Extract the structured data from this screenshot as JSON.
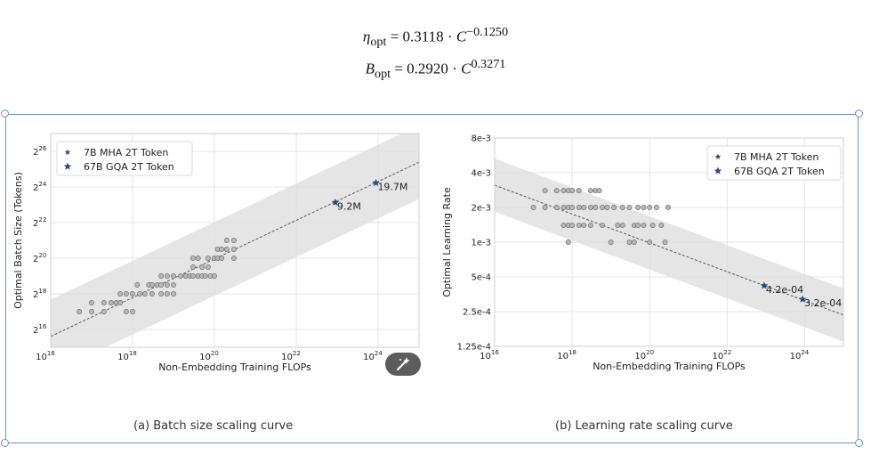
{
  "formulas": {
    "eta": {
      "symbol": "η",
      "sub": "opt",
      "rhs": "= 0.3118 · ",
      "base": "C",
      "exp": "−0.1250"
    },
    "batch": {
      "symbol": "B",
      "sub": "opt",
      "rhs": "= 0.2920 · ",
      "base": "C",
      "exp": "0.3271"
    }
  },
  "captions": {
    "left": "(a)  Batch size scaling curve",
    "right": "(b)  Learning rate scaling curve"
  },
  "colors": {
    "star": "#2b4a8a",
    "point": "#b8b8b8",
    "band": "#dcdcdc",
    "fit": "#555555"
  },
  "icons": {
    "magic_button": "magic-wand-icon"
  },
  "chart_data": [
    {
      "type": "scatter",
      "xlabel": "Non-Embedding Training FLOPs",
      "ylabel": "Optimal Batch Size (Tokens)",
      "x_scale": "log10",
      "y_scale": "log2",
      "xlim": [
        1e+16,
        1e+25
      ],
      "ylim": [
        32768,
        134217728
      ],
      "x_ticks": [
        {
          "v": 16,
          "base": "10",
          "exp": "16"
        },
        {
          "v": 18,
          "base": "10",
          "exp": "18"
        },
        {
          "v": 20,
          "base": "10",
          "exp": "20"
        },
        {
          "v": 22,
          "base": "10",
          "exp": "22"
        },
        {
          "v": 24,
          "base": "10",
          "exp": "24"
        }
      ],
      "y_ticks": [
        {
          "v": 16,
          "base": "2",
          "exp": "16"
        },
        {
          "v": 18,
          "base": "2",
          "exp": "18"
        },
        {
          "v": 20,
          "base": "2",
          "exp": "20"
        },
        {
          "v": 22,
          "base": "2",
          "exp": "22"
        },
        {
          "v": 24,
          "base": "2",
          "exp": "24"
        },
        {
          "v": 26,
          "base": "2",
          "exp": "26"
        }
      ],
      "grid": true,
      "legend_position": "top-left",
      "legend": [
        "7B MHA 2T Token",
        "67B GQA 2T Token"
      ],
      "fit": {
        "coef": 0.292,
        "exp": 0.3271
      },
      "points": [
        [
          5e+16,
          17
        ],
        [
          1e+17,
          17
        ],
        [
          1e+17,
          17.5
        ],
        [
          2e+17,
          17
        ],
        [
          2e+17,
          17.5
        ],
        [
          3e+17,
          17.5
        ],
        [
          4e+17,
          17.5
        ],
        [
          5e+17,
          17.5
        ],
        [
          5e+17,
          18
        ],
        [
          7e+17,
          17
        ],
        [
          7e+17,
          18
        ],
        [
          1e+18,
          18
        ],
        [
          1e+18,
          17
        ],
        [
          1.3e+18,
          18.5
        ],
        [
          1.5e+18,
          18
        ],
        [
          2e+18,
          18
        ],
        [
          2.5e+18,
          18.5
        ],
        [
          3e+18,
          18.5
        ],
        [
          3e+18,
          18
        ],
        [
          4e+18,
          18.5
        ],
        [
          5e+18,
          18
        ],
        [
          5e+18,
          18.5
        ],
        [
          5e+18,
          19
        ],
        [
          7e+18,
          18
        ],
        [
          7e+18,
          19
        ],
        [
          7e+18,
          18.5
        ],
        [
          1e+19,
          19
        ],
        [
          1e+19,
          18.5
        ],
        [
          1e+19,
          18
        ],
        [
          1.5e+19,
          19
        ],
        [
          2e+19,
          19
        ],
        [
          2.5e+19,
          19
        ],
        [
          3e+19,
          19
        ],
        [
          3e+19,
          19.5
        ],
        [
          3e+19,
          20
        ],
        [
          4e+19,
          19
        ],
        [
          4e+19,
          20
        ],
        [
          5e+19,
          19
        ],
        [
          5e+19,
          19.5
        ],
        [
          6e+19,
          19
        ],
        [
          7e+19,
          19.5
        ],
        [
          7e+19,
          20
        ],
        [
          8e+19,
          19
        ],
        [
          1e+20,
          20
        ],
        [
          1e+20,
          19
        ],
        [
          1.2e+20,
          20
        ],
        [
          1.2e+20,
          20.5
        ],
        [
          1.5e+20,
          20.5
        ],
        [
          1.5e+20,
          20
        ],
        [
          2e+20,
          20.5
        ],
        [
          2e+20,
          21
        ],
        [
          3e+20,
          20.5
        ],
        [
          3e+20,
          21
        ],
        [
          3e+20,
          20
        ]
      ],
      "stars": [
        {
          "x": 9e+22,
          "y": 9200000.0,
          "label": "9.2M",
          "series": "7B MHA 2T Token"
        },
        {
          "x": 8.8e+23,
          "y": 19700000.0,
          "label": "19.7M",
          "series": "67B GQA 2T Token"
        }
      ]
    },
    {
      "type": "scatter",
      "xlabel": "Non-Embedding Training FLOPs",
      "ylabel": "Optimal Learning Rate",
      "x_scale": "log10",
      "y_scale": "log2",
      "xlim": [
        1e+16,
        1e+25
      ],
      "ylim": [
        0.000125,
        0.008
      ],
      "x_ticks": [
        {
          "v": 16,
          "base": "10",
          "exp": "16"
        },
        {
          "v": 18,
          "base": "10",
          "exp": "18"
        },
        {
          "v": 20,
          "base": "10",
          "exp": "20"
        },
        {
          "v": 22,
          "base": "10",
          "exp": "22"
        },
        {
          "v": 24,
          "base": "10",
          "exp": "24"
        }
      ],
      "y_ticks": [
        {
          "v": 0.008,
          "label": "8e-3"
        },
        {
          "v": 0.004,
          "label": "4e-3"
        },
        {
          "v": 0.002,
          "label": "2e-3"
        },
        {
          "v": 0.001,
          "label": "1e-3"
        },
        {
          "v": 0.0005,
          "label": "5e-4"
        },
        {
          "v": 0.00025,
          "label": "2.5e-4"
        },
        {
          "v": 0.000125,
          "label": "1.25e-4"
        }
      ],
      "grid": true,
      "legend_position": "top-right",
      "legend": [
        "7B MHA 2T Token",
        "67B GQA 2T Token"
      ],
      "fit": {
        "coef": 0.3118,
        "exp": -0.125
      },
      "points": [
        [
          1e+17,
          0.002
        ],
        [
          2e+17,
          0.002
        ],
        [
          2e+17,
          0.0028
        ],
        [
          4e+17,
          0.0028
        ],
        [
          4e+17,
          0.002
        ],
        [
          6e+17,
          0.0028
        ],
        [
          6e+17,
          0.002
        ],
        [
          6e+17,
          0.0014
        ],
        [
          8e+17,
          0.0028
        ],
        [
          8e+17,
          0.002
        ],
        [
          8e+17,
          0.0014
        ],
        [
          8e+17,
          0.001
        ],
        [
          1e+18,
          0.0028
        ],
        [
          1e+18,
          0.002
        ],
        [
          1e+18,
          0.0014
        ],
        [
          1.5e+18,
          0.0028
        ],
        [
          1.5e+18,
          0.002
        ],
        [
          1.5e+18,
          0.0014
        ],
        [
          2e+18,
          0.002
        ],
        [
          2e+18,
          0.0014
        ],
        [
          3e+18,
          0.0028
        ],
        [
          3e+18,
          0.002
        ],
        [
          3e+18,
          0.0014
        ],
        [
          4e+18,
          0.0028
        ],
        [
          4e+18,
          0.002
        ],
        [
          5e+18,
          0.0028
        ],
        [
          6e+18,
          0.002
        ],
        [
          6e+18,
          0.0014
        ],
        [
          8e+18,
          0.002
        ],
        [
          1e+19,
          0.001
        ],
        [
          1.2e+19,
          0.002
        ],
        [
          1.5e+19,
          0.0014
        ],
        [
          2e+19,
          0.002
        ],
        [
          2e+19,
          0.0014
        ],
        [
          3e+19,
          0.001
        ],
        [
          3e+19,
          0.002
        ],
        [
          4e+19,
          0.001
        ],
        [
          4e+19,
          0.0014
        ],
        [
          5e+19,
          0.002
        ],
        [
          5e+19,
          0.0014
        ],
        [
          7e+19,
          0.002
        ],
        [
          7e+19,
          0.0014
        ],
        [
          1e+20,
          0.001
        ],
        [
          1e+20,
          0.002
        ],
        [
          1.2e+20,
          0.0014
        ],
        [
          1.5e+20,
          0.002
        ],
        [
          2e+20,
          0.0014
        ],
        [
          2.5e+20,
          0.001
        ],
        [
          3e+20,
          0.002
        ]
      ],
      "stars": [
        {
          "x": 9e+22,
          "y": 0.00042,
          "label": "4.2e-04",
          "series": "7B MHA 2T Token"
        },
        {
          "x": 8.8e+23,
          "y": 0.00032,
          "label": "3.2e-04",
          "series": "67B GQA 2T Token"
        }
      ]
    }
  ]
}
